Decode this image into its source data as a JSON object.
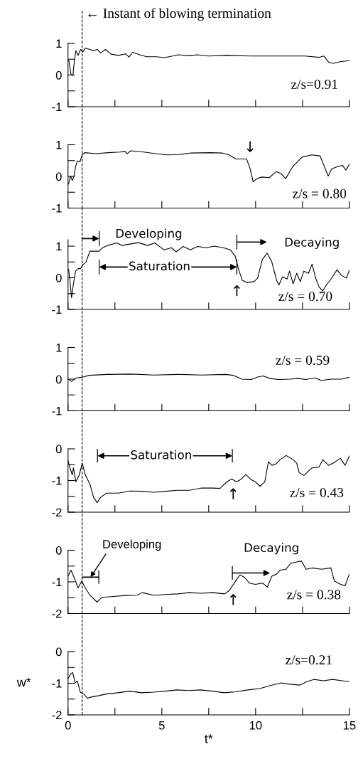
{
  "chart_data": [
    {
      "type": "line",
      "title": "z/s=0.91",
      "xlim": [
        0,
        15
      ],
      "xticks": [
        0,
        {
          "value": 2.5,
          "label": null
        },
        5,
        {
          "value": 7.5,
          "label": null
        },
        10,
        {
          "value": 12.5,
          "label": null
        },
        15
      ],
      "ylim": [
        -1,
        1
      ],
      "yticks": [
        -1,
        {
          "value": -0.5,
          "label": null
        },
        0,
        {
          "value": 0.5,
          "label": null
        },
        1
      ],
      "tick_labels": "y",
      "ref_lines": [
        {
          "axis": "x",
          "value": 0.75,
          "label": "← Instant of blowing termination",
          "line_style": "dashed",
          "color": "#000000"
        }
      ],
      "series": [
        {
          "color": "#000000",
          "x": [
            0.04,
            0.16,
            0.26,
            0.35,
            0.42,
            0.54,
            0.67,
            0.79,
            0.92,
            1.17,
            1.36,
            1.55,
            1.74,
            2.0,
            2.3,
            2.68,
            3.06,
            3.25,
            3.44,
            3.82,
            4.19,
            4.7,
            5.14,
            5.58,
            5.89,
            6.46,
            6.9,
            7.47,
            8.48,
            9.74,
            11.0,
            12.63,
            13.39,
            13.64,
            13.9,
            14.14,
            14.52,
            14.9,
            15
          ],
          "values": [
            0.47,
            0.02,
            -0.01,
            0.51,
            0.77,
            0.62,
            0.81,
            0.73,
            0.85,
            0.81,
            0.77,
            0.81,
            0.7,
            0.81,
            0.66,
            0.62,
            0.67,
            0.57,
            0.72,
            0.64,
            0.58,
            0.58,
            0.55,
            0.6,
            0.64,
            0.61,
            0.64,
            0.6,
            0.62,
            0.6,
            0.6,
            0.6,
            0.56,
            0.6,
            0.4,
            0.37,
            0.42,
            0.45,
            0.45
          ]
        }
      ]
    },
    {
      "type": "line",
      "title": "z/s = 0.80",
      "xlim": [
        0,
        15
      ],
      "xticks": [
        0,
        {
          "value": 2.5,
          "label": null
        },
        5,
        {
          "value": 7.5,
          "label": null
        },
        10,
        {
          "value": 12.5,
          "label": null
        },
        15
      ],
      "ylim": [
        -1,
        1
      ],
      "yticks": [
        -1,
        {
          "value": -0.5,
          "label": null
        },
        0,
        {
          "value": 0.5,
          "label": null
        },
        1
      ],
      "tick_labels": "y",
      "ref_lines": [
        {
          "axis": "x",
          "value": 0.75,
          "line_style": "dashed",
          "color": "#000000"
        }
      ],
      "annotations": [
        "↓"
      ],
      "series": [
        {
          "color": "#000000",
          "x": [
            0.03,
            0.13,
            0.23,
            0.32,
            0.4,
            0.5,
            0.63,
            0.76,
            0.88,
            1.51,
            2.14,
            2.77,
            3.03,
            3.15,
            3.34,
            4.04,
            4.67,
            5.3,
            5.93,
            6.56,
            7.57,
            8.2,
            8.58,
            8.95,
            9.52,
            9.71,
            9.87,
            10.09,
            10.34,
            10.72,
            11.1,
            11.35,
            11.6,
            11.98,
            12.48,
            12.99,
            13.43,
            13.62,
            13.87,
            14.06,
            14.37,
            14.63,
            14.81,
            15
          ],
          "values": [
            -0.24,
            0.01,
            -0.13,
            0.01,
            0.31,
            0.49,
            0.46,
            0.68,
            0.75,
            0.72,
            0.75,
            0.77,
            0.79,
            0.72,
            0.81,
            0.77,
            0.72,
            0.68,
            0.69,
            0.74,
            0.75,
            0.74,
            0.68,
            0.55,
            0.55,
            0.24,
            -0.17,
            -0.06,
            -0.02,
            -0.04,
            0.15,
            0.09,
            -0.07,
            0.31,
            0.61,
            0.68,
            0.65,
            0.38,
            0.01,
            0.24,
            0.31,
            0.35,
            0.2,
            0.38
          ]
        }
      ]
    },
    {
      "type": "line",
      "title": "z/s = 0.70",
      "xlim": [
        0,
        15
      ],
      "xticks": [
        0,
        {
          "value": 2.5,
          "label": null
        },
        5,
        {
          "value": 7.5,
          "label": null
        },
        10,
        {
          "value": 12.5,
          "label": null
        },
        15
      ],
      "ylim": [
        -1,
        1.2
      ],
      "yticks": [
        -1,
        {
          "value": -0.5,
          "label": null
        },
        0,
        {
          "value": 0.5,
          "label": null
        },
        1
      ],
      "tick_labels": "y",
      "ref_lines": [
        {
          "axis": "x",
          "value": 0.75,
          "line_style": "dashed",
          "color": "#000000"
        }
      ],
      "annotations": [
        "Developing",
        "Saturation",
        "Decaying",
        "↑"
      ],
      "series": [
        {
          "color": "#000000",
          "x": [
            0.03,
            0.09,
            0.19,
            0.28,
            0.4,
            0.53,
            0.66,
            0.78,
            0.97,
            1.16,
            1.41,
            1.66,
            1.85,
            2.1,
            2.61,
            2.86,
            3.24,
            3.74,
            4.25,
            4.62,
            5.13,
            5.51,
            5.76,
            6.14,
            6.52,
            6.9,
            7.4,
            7.78,
            8.28,
            8.66,
            8.91,
            9.1,
            9.29,
            9.54,
            9.92,
            10.11,
            10.36,
            10.61,
            10.86,
            11.12,
            11.24,
            11.43,
            11.68,
            11.81,
            12.0,
            12.19,
            12.38,
            12.57,
            12.82,
            13.01,
            13.2,
            13.39,
            13.58,
            13.77,
            14.02,
            14.34,
            14.59,
            14.84,
            15
          ],
          "values": [
            0.27,
            -0.01,
            -0.63,
            -0.23,
            0.21,
            0.29,
            0.29,
            0.4,
            0.51,
            0.84,
            0.84,
            0.84,
            0.95,
            1.02,
            1.1,
            1.02,
            1.06,
            1.11,
            1.02,
            1.1,
            0.88,
            0.95,
            0.82,
            0.99,
            0.88,
            0.99,
            0.95,
            1.0,
            0.95,
            0.88,
            0.69,
            0.25,
            -0.08,
            -0.15,
            -0.12,
            -0.01,
            0.58,
            0.78,
            0.51,
            -0.08,
            -0.23,
            0.03,
            -0.04,
            0.21,
            -0.19,
            0.14,
            -0.12,
            0.21,
            0.14,
            0.43,
            -0.01,
            -0.3,
            -0.41,
            -0.23,
            -0.04,
            0.25,
            0.07,
            -0.01,
            0.25
          ]
        }
      ]
    },
    {
      "type": "line",
      "title": "z/s = 0.59",
      "xlim": [
        0,
        15
      ],
      "xticks": [
        0,
        {
          "value": 2.5,
          "label": null
        },
        5,
        {
          "value": 7.5,
          "label": null
        },
        10,
        {
          "value": 12.5,
          "label": null
        },
        15
      ],
      "ylim": [
        -1,
        1
      ],
      "yticks": [
        -1,
        {
          "value": -0.5,
          "label": null
        },
        0,
        {
          "value": 0.5,
          "label": null
        },
        1
      ],
      "tick_labels": "y",
      "ref_lines": [
        {
          "axis": "x",
          "value": 0.75,
          "line_style": "dashed",
          "color": "#000000"
        }
      ],
      "series": [
        {
          "color": "#000000",
          "x": [
            0,
            0.19,
            0.44,
            0.76,
            1.13,
            2.08,
            3.34,
            4.6,
            5.86,
            7.12,
            8.38,
            8.82,
            9.26,
            9.77,
            10.08,
            10.4,
            10.78,
            11.22,
            11.79,
            12.29,
            12.67,
            13.17,
            13.49,
            14.05,
            14.56,
            15
          ],
          "values": [
            0,
            -0.07,
            0.04,
            0.06,
            0.12,
            0.15,
            0.16,
            0.13,
            0.15,
            0.13,
            0.15,
            0.12,
            0,
            -0.01,
            0.06,
            0.1,
            0.02,
            -0.01,
            0,
            0.02,
            -0.01,
            0.04,
            -0.04,
            0,
            0,
            0.06
          ]
        }
      ]
    },
    {
      "type": "line",
      "title": "z/s = 0.43",
      "xlim": [
        0,
        15
      ],
      "xticks": [
        0,
        {
          "value": 2.5,
          "label": null
        },
        5,
        {
          "value": 7.5,
          "label": null
        },
        10,
        {
          "value": 12.5,
          "label": null
        },
        15
      ],
      "ylim": [
        -2,
        0
      ],
      "yticks": [
        -2,
        {
          "value": -1.5,
          "label": null
        },
        -1,
        {
          "value": -0.5,
          "label": null
        },
        0
      ],
      "tick_labels": "y",
      "ref_lines": [
        {
          "axis": "x",
          "value": 0.75,
          "line_style": "dashed",
          "color": "#000000"
        }
      ],
      "annotations": [
        "Saturation",
        "↑"
      ],
      "series": [
        {
          "color": "#000000",
          "x": [
            0,
            0.1,
            0.23,
            0.29,
            0.42,
            0.6,
            0.76,
            0.92,
            1.17,
            1.36,
            1.55,
            1.74,
            2.05,
            2.68,
            3.31,
            3.94,
            4.57,
            5.2,
            5.83,
            6.46,
            7.09,
            7.72,
            8.1,
            8.48,
            8.73,
            8.98,
            9.23,
            9.48,
            9.73,
            9.98,
            10.24,
            10.49,
            10.68,
            10.87,
            11.06,
            11.31,
            11.62,
            12.0,
            12.19,
            12.32,
            12.57,
            13.01,
            13.39,
            13.58,
            13.89,
            14.14,
            14.52,
            14.77,
            15
          ],
          "values": [
            -0.37,
            -0.6,
            -0.82,
            -0.6,
            -1.04,
            -0.82,
            -0.45,
            -0.82,
            -1.12,
            -1.53,
            -1.7,
            -1.53,
            -1.4,
            -1.4,
            -1.33,
            -1.34,
            -1.37,
            -1.34,
            -1.31,
            -1.31,
            -1.24,
            -1.24,
            -1.25,
            -1.04,
            -0.95,
            -1.04,
            -0.96,
            -0.81,
            -0.96,
            -1.04,
            -1.18,
            -1.04,
            -0.41,
            -0.52,
            -0.49,
            -0.34,
            -0.21,
            -0.34,
            -0.45,
            -0.75,
            -0.84,
            -0.6,
            -0.57,
            -0.34,
            -0.52,
            -0.45,
            -0.3,
            -0.52,
            -0.22
          ]
        }
      ]
    },
    {
      "type": "line",
      "title": "z/s = 0.38",
      "xlim": [
        0,
        15
      ],
      "xticks": [
        0,
        {
          "value": 2.5,
          "label": null
        },
        5,
        {
          "value": 7.5,
          "label": null
        },
        10,
        {
          "value": 12.5,
          "label": null
        },
        15
      ],
      "ylim": [
        -2,
        0
      ],
      "yticks": [
        -2,
        {
          "value": -1.5,
          "label": null
        },
        -1,
        {
          "value": -0.5,
          "label": null
        },
        0
      ],
      "tick_labels": "y",
      "ref_lines": [
        {
          "axis": "x",
          "value": 0.75,
          "line_style": "dashed",
          "color": "#000000"
        }
      ],
      "annotations": [
        "Developing",
        "Decaying",
        "↑"
      ],
      "series": [
        {
          "color": "#000000",
          "x": [
            0,
            0.16,
            0.35,
            0.54,
            0.73,
            0.92,
            1.17,
            1.55,
            1.8,
            2.43,
            3.06,
            3.69,
            3.94,
            4.57,
            5.2,
            5.83,
            6.46,
            7.09,
            7.72,
            8.35,
            8.6,
            8.98,
            9.17,
            9.42,
            9.67,
            9.99,
            10.37,
            10.62,
            10.87,
            11.12,
            11.31,
            11.62,
            11.88,
            12.19,
            12.44,
            12.69,
            13.01,
            13.51,
            14.01,
            14.2,
            14.52,
            14.77,
            15
          ],
          "values": [
            -0.82,
            -0.63,
            -0.9,
            -1.19,
            -0.97,
            -1.19,
            -1.42,
            -1.64,
            -1.49,
            -1.46,
            -1.43,
            -1.42,
            -1.34,
            -1.42,
            -1.4,
            -1.38,
            -1.34,
            -1.36,
            -1.34,
            -1.38,
            -1.27,
            -0.93,
            -0.78,
            -0.86,
            -1.04,
            -1.08,
            -1.04,
            -1.16,
            -0.82,
            -0.75,
            -0.63,
            -0.6,
            -0.41,
            -0.37,
            -0.34,
            -0.6,
            -0.56,
            -0.6,
            -0.56,
            -0.97,
            -1.08,
            -1.12,
            -0.75
          ]
        }
      ]
    },
    {
      "type": "line",
      "title": "z/s=0.21",
      "xlabel": "t*",
      "ylabel": "w*",
      "xlim": [
        0,
        15
      ],
      "xticks": [
        0,
        {
          "value": 2.5,
          "label": null
        },
        5,
        {
          "value": 7.5,
          "label": null
        },
        10,
        {
          "value": 12.5,
          "label": null
        },
        15
      ],
      "ylim": [
        -2,
        0
      ],
      "yticks": [
        -2,
        {
          "value": -1.5,
          "label": null
        },
        -1,
        {
          "value": -0.5,
          "label": null
        },
        0
      ],
      "ref_lines": [
        {
          "axis": "x",
          "value": 0.75,
          "line_style": "dashed",
          "color": "#000000"
        }
      ],
      "series": [
        {
          "color": "#000000",
          "x": [
            0,
            0.15,
            0.25,
            0.38,
            0.5,
            0.65,
            0.84,
            1.03,
            1.28,
            1.66,
            2.03,
            2.66,
            3.29,
            3.92,
            4.55,
            5.18,
            5.81,
            6.44,
            7.07,
            7.7,
            8.33,
            8.96,
            9.59,
            10.22,
            10.85,
            11.35,
            11.85,
            12.35,
            12.73,
            13.11,
            13.61,
            14.11,
            14.61,
            15
          ],
          "values": [
            -0.85,
            -0.7,
            -0.66,
            -0.99,
            -0.93,
            -1.28,
            -1.34,
            -1.47,
            -1.43,
            -1.39,
            -1.34,
            -1.3,
            -1.25,
            -1.3,
            -1.28,
            -1.25,
            -1.21,
            -1.23,
            -1.21,
            -1.25,
            -1.3,
            -1.27,
            -1.21,
            -1.17,
            -1.06,
            -0.99,
            -1.03,
            -1.06,
            -0.95,
            -0.88,
            -0.92,
            -0.88,
            -0.92,
            -0.95
          ]
        }
      ]
    }
  ]
}
